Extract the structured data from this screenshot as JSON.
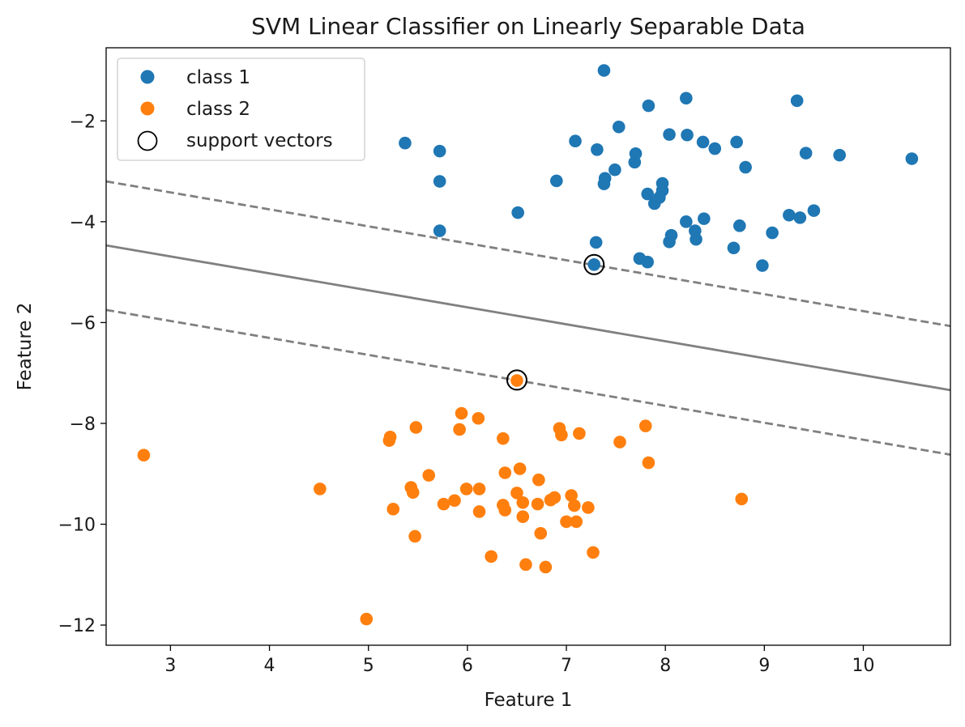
{
  "chart_data": {
    "type": "scatter",
    "title": "SVM Linear Classifier on Linearly Separable Data",
    "xlabel": "Feature 1",
    "ylabel": "Feature 2",
    "xlim": [
      2.35,
      10.88
    ],
    "ylim": [
      -12.4,
      -0.55
    ],
    "xticks": [
      3,
      4,
      5,
      6,
      7,
      8,
      9,
      10
    ],
    "xtick_labels": [
      "3",
      "4",
      "5",
      "6",
      "7",
      "8",
      "9",
      "10"
    ],
    "yticks": [
      -2,
      -4,
      -6,
      -8,
      -10,
      -12
    ],
    "ytick_labels": [
      "−2",
      "−4",
      "−6",
      "−8",
      "−10",
      "−12"
    ],
    "grid": false,
    "legend_position": "top-left",
    "legend": [
      "class 1",
      "class 2",
      "support vectors"
    ],
    "colors": {
      "class_1": "#1f77b4",
      "class_2": "#ff7f0e",
      "boundary": "#808080",
      "support_vectors": "#000000"
    },
    "series": [
      {
        "name": "class 1",
        "points": [
          [
            7.38,
            -1.0
          ],
          [
            8.21,
            -1.55
          ],
          [
            9.33,
            -1.6
          ],
          [
            7.83,
            -1.7
          ],
          [
            7.53,
            -2.12
          ],
          [
            8.04,
            -2.27
          ],
          [
            8.22,
            -2.28
          ],
          [
            8.38,
            -2.42
          ],
          [
            8.72,
            -2.42
          ],
          [
            7.09,
            -2.4
          ],
          [
            5.37,
            -2.44
          ],
          [
            8.5,
            -2.55
          ],
          [
            7.31,
            -2.57
          ],
          [
            5.72,
            -2.6
          ],
          [
            7.7,
            -2.65
          ],
          [
            9.42,
            -2.64
          ],
          [
            9.76,
            -2.68
          ],
          [
            10.49,
            -2.75
          ],
          [
            7.69,
            -2.82
          ],
          [
            8.81,
            -2.92
          ],
          [
            7.49,
            -2.97
          ],
          [
            7.39,
            -3.14
          ],
          [
            6.9,
            -3.19
          ],
          [
            5.72,
            -3.2
          ],
          [
            7.38,
            -3.25
          ],
          [
            7.97,
            -3.24
          ],
          [
            7.82,
            -3.45
          ],
          [
            7.97,
            -3.38
          ],
          [
            7.94,
            -3.52
          ],
          [
            7.89,
            -3.64
          ],
          [
            6.51,
            -3.82
          ],
          [
            9.5,
            -3.78
          ],
          [
            9.25,
            -3.87
          ],
          [
            9.36,
            -3.92
          ],
          [
            8.39,
            -3.94
          ],
          [
            8.21,
            -4.0
          ],
          [
            8.75,
            -4.08
          ],
          [
            8.3,
            -4.18
          ],
          [
            5.72,
            -4.18
          ],
          [
            9.08,
            -4.22
          ],
          [
            8.06,
            -4.27
          ],
          [
            8.31,
            -4.35
          ],
          [
            8.04,
            -4.4
          ],
          [
            7.3,
            -4.41
          ],
          [
            8.69,
            -4.52
          ],
          [
            7.74,
            -4.73
          ],
          [
            7.82,
            -4.8
          ],
          [
            7.28,
            -4.85
          ],
          [
            8.98,
            -4.87
          ]
        ]
      },
      {
        "name": "class 2",
        "points": [
          [
            6.5,
            -7.15
          ],
          [
            5.94,
            -7.8
          ],
          [
            6.11,
            -7.9
          ],
          [
            7.8,
            -8.05
          ],
          [
            5.48,
            -8.08
          ],
          [
            5.92,
            -8.12
          ],
          [
            6.93,
            -8.1
          ],
          [
            7.13,
            -8.2
          ],
          [
            6.95,
            -8.23
          ],
          [
            5.22,
            -8.27
          ],
          [
            5.21,
            -8.34
          ],
          [
            6.36,
            -8.3
          ],
          [
            7.54,
            -8.37
          ],
          [
            2.73,
            -8.63
          ],
          [
            7.83,
            -8.78
          ],
          [
            6.53,
            -8.9
          ],
          [
            6.38,
            -8.98
          ],
          [
            5.61,
            -9.03
          ],
          [
            6.72,
            -9.12
          ],
          [
            4.51,
            -9.3
          ],
          [
            5.43,
            -9.27
          ],
          [
            5.99,
            -9.3
          ],
          [
            6.12,
            -9.3
          ],
          [
            5.45,
            -9.37
          ],
          [
            6.5,
            -9.38
          ],
          [
            7.05,
            -9.43
          ],
          [
            6.88,
            -9.47
          ],
          [
            8.77,
            -9.5
          ],
          [
            5.87,
            -9.53
          ],
          [
            6.84,
            -9.52
          ],
          [
            6.56,
            -9.57
          ],
          [
            5.76,
            -9.6
          ],
          [
            6.36,
            -9.62
          ],
          [
            6.71,
            -9.6
          ],
          [
            7.08,
            -9.63
          ],
          [
            7.22,
            -9.67
          ],
          [
            5.25,
            -9.7
          ],
          [
            6.38,
            -9.72
          ],
          [
            6.12,
            -9.75
          ],
          [
            6.56,
            -9.85
          ],
          [
            7.0,
            -9.95
          ],
          [
            7.1,
            -9.95
          ],
          [
            6.74,
            -10.18
          ],
          [
            5.47,
            -10.24
          ],
          [
            7.27,
            -10.56
          ],
          [
            6.24,
            -10.64
          ],
          [
            6.59,
            -10.8
          ],
          [
            6.79,
            -10.85
          ],
          [
            4.98,
            -11.88
          ]
        ]
      }
    ],
    "support_vectors": [
      [
        7.28,
        -4.85
      ],
      [
        6.5,
        -7.14
      ]
    ],
    "decision_boundary": {
      "x": [
        2.35,
        10.88
      ],
      "y": [
        -4.47,
        -7.34
      ]
    },
    "margins": [
      {
        "x": [
          2.35,
          10.88
        ],
        "y": [
          -3.2,
          -6.07
        ]
      },
      {
        "x": [
          2.35,
          10.88
        ],
        "y": [
          -5.75,
          -8.62
        ]
      }
    ]
  }
}
